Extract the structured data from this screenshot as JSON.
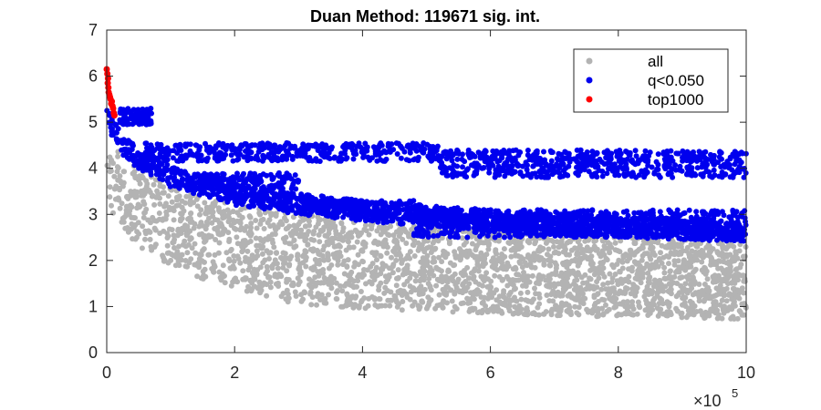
{
  "chart_data": {
    "type": "scatter",
    "title": "Duan Method: 119671 sig. int.",
    "xlabel": "",
    "ylabel": "",
    "xlim": [
      0,
      1000000
    ],
    "ylim": [
      0,
      7
    ],
    "x_ticks": [
      0,
      200000,
      400000,
      600000,
      800000,
      1000000
    ],
    "x_tick_labels": [
      "0",
      "2",
      "4",
      "6",
      "8",
      "10"
    ],
    "x_exponent_label": {
      "base": "×10",
      "power": "5"
    },
    "y_ticks": [
      0,
      1,
      2,
      3,
      4,
      5,
      6,
      7
    ],
    "y_tick_labels": [
      "0",
      "1",
      "2",
      "3",
      "4",
      "5",
      "6",
      "7"
    ],
    "grid": false,
    "legend_placement": "top-right",
    "series": [
      {
        "name": "all",
        "color": "#b3b3b3",
        "description": "dense cloud of points between a lower and upper envelope",
        "lower_envelope": [
          [
            0,
            3.3
          ],
          [
            10000,
            3.0
          ],
          [
            30000,
            2.6
          ],
          [
            60000,
            2.2
          ],
          [
            100000,
            1.9
          ],
          [
            150000,
            1.6
          ],
          [
            200000,
            1.4
          ],
          [
            250000,
            1.2
          ],
          [
            300000,
            1.05
          ],
          [
            400000,
            0.95
          ],
          [
            500000,
            0.9
          ],
          [
            600000,
            0.85
          ],
          [
            700000,
            0.8
          ],
          [
            800000,
            0.78
          ],
          [
            900000,
            0.75
          ],
          [
            1000000,
            0.72
          ]
        ],
        "upper_envelope": [
          [
            0,
            5.0
          ],
          [
            10000,
            4.6
          ],
          [
            30000,
            4.2
          ],
          [
            60000,
            3.9
          ],
          [
            100000,
            3.6
          ],
          [
            150000,
            3.4
          ],
          [
            200000,
            3.2
          ],
          [
            300000,
            3.0
          ],
          [
            400000,
            2.85
          ],
          [
            500000,
            2.75
          ],
          [
            600000,
            2.65
          ],
          [
            700000,
            2.55
          ],
          [
            800000,
            2.5
          ],
          [
            900000,
            2.45
          ],
          [
            1000000,
            2.4
          ]
        ]
      },
      {
        "name": "q<0.050",
        "color": "#0000ee",
        "description": "points above a significance threshold curve plus horizontal bands",
        "lower_envelope": [
          [
            0,
            5.0
          ],
          [
            10000,
            4.6
          ],
          [
            30000,
            4.2
          ],
          [
            60000,
            3.9
          ],
          [
            100000,
            3.6
          ],
          [
            150000,
            3.4
          ],
          [
            200000,
            3.2
          ],
          [
            300000,
            3.0
          ],
          [
            400000,
            2.85
          ],
          [
            500000,
            2.75
          ],
          [
            600000,
            2.65
          ],
          [
            700000,
            2.55
          ],
          [
            800000,
            2.5
          ],
          [
            900000,
            2.45
          ],
          [
            1000000,
            2.4
          ]
        ],
        "bands": [
          {
            "x": [
              20000,
              70000
            ],
            "y": [
              4.95,
              5.3
            ]
          },
          {
            "x": [
              60000,
              520000
            ],
            "y": [
              4.15,
              4.55
            ]
          },
          {
            "x": [
              520000,
              1000000
            ],
            "y": [
              3.8,
              4.4
            ]
          },
          {
            "x": [
              120000,
              300000
            ],
            "y": [
              3.55,
              3.9
            ]
          },
          {
            "x": [
              300000,
              480000
            ],
            "y": [
              3.0,
              3.3
            ]
          },
          {
            "x": [
              480000,
              1000000
            ],
            "y": [
              2.5,
              3.1
            ]
          }
        ]
      },
      {
        "name": "top1000",
        "color": "#ff0000",
        "description": "points clustered near x=0 at high y",
        "points": [
          [
            0,
            6.15
          ],
          [
            1000,
            6.05
          ],
          [
            2000,
            5.95
          ],
          [
            1500,
            5.85
          ],
          [
            2500,
            5.75
          ],
          [
            3000,
            5.65
          ],
          [
            4000,
            5.6
          ],
          [
            6000,
            5.5
          ],
          [
            8000,
            5.45
          ],
          [
            9000,
            5.35
          ],
          [
            10000,
            5.3
          ],
          [
            11000,
            5.2
          ],
          [
            12000,
            5.15
          ],
          [
            7000,
            5.4
          ],
          [
            5000,
            5.55
          ]
        ]
      }
    ]
  }
}
